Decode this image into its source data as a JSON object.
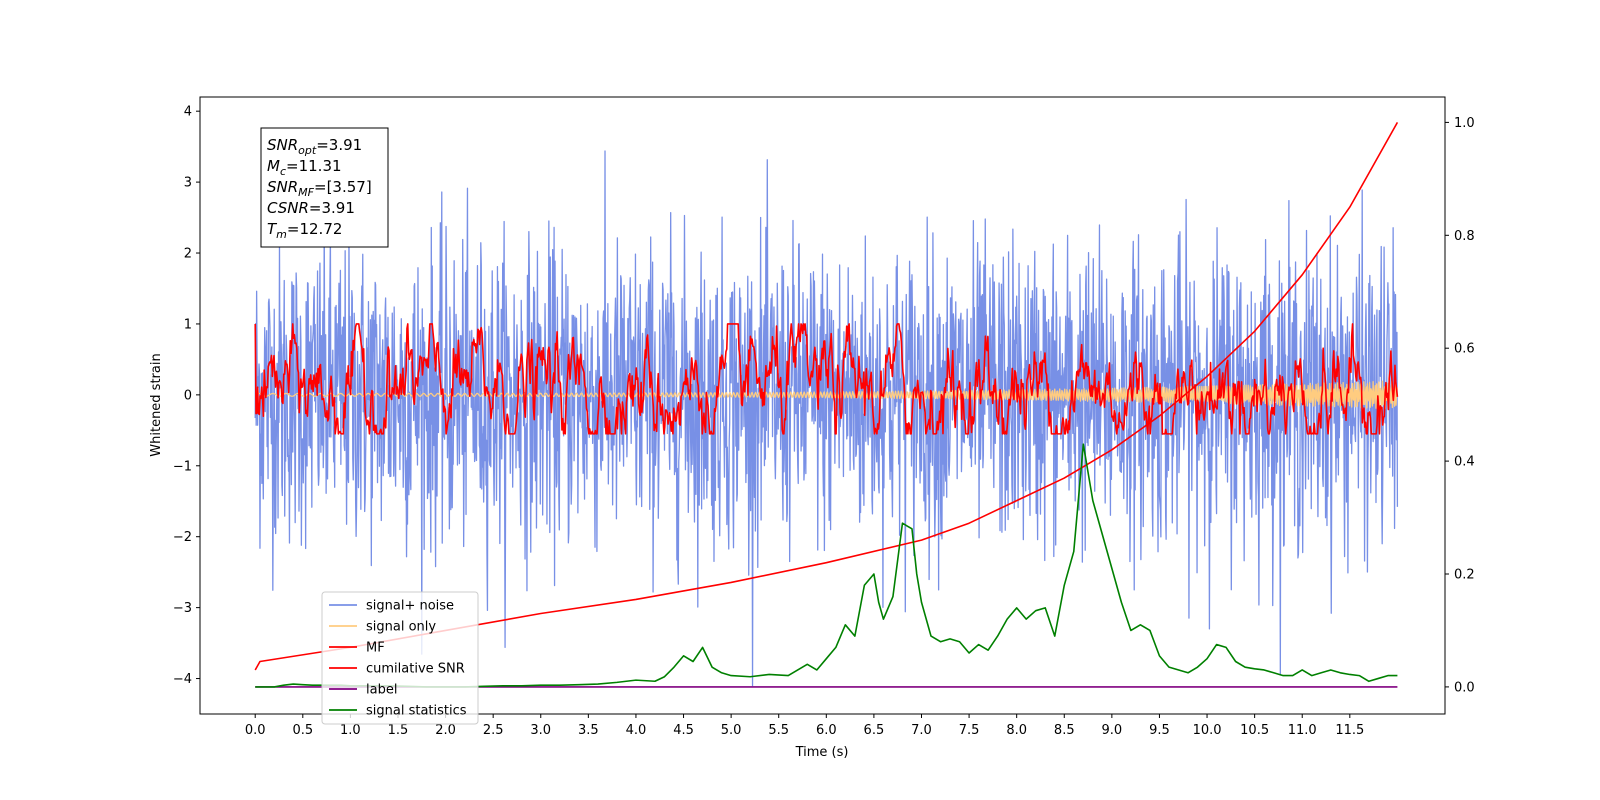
{
  "chart_data": {
    "type": "line",
    "xlabel": "Time (s)",
    "ylabel": "Whitened strain",
    "x_ticks": [
      "0.0",
      "0.5",
      "1.0",
      "1.5",
      "2.0",
      "2.5",
      "3.0",
      "3.5",
      "4.0",
      "4.5",
      "5.0",
      "5.5",
      "6.0",
      "6.5",
      "7.0",
      "7.5",
      "8.0",
      "8.5",
      "9.0",
      "9.5",
      "10.0",
      "10.5",
      "11.0",
      "11.5"
    ],
    "xlim": [
      -0.58,
      12.5
    ],
    "ylim_left": [
      -4.5,
      4.2
    ],
    "ylim_right": [
      -0.048,
      1.045
    ],
    "y_ticks_left": [
      "4",
      "3",
      "2",
      "1",
      "0",
      "−1",
      "−2",
      "−3",
      "−4"
    ],
    "y_ticks_right": [
      "1.0",
      "0.8",
      "0.6",
      "0.4",
      "0.2",
      "0.0"
    ],
    "annotation": {
      "lines": [
        {
          "sym": "SNR",
          "sub": "opt",
          "val": "=3.91"
        },
        {
          "sym": "M",
          "sub": "c",
          "val": "=11.31"
        },
        {
          "sym": "SNR",
          "sub": "MF",
          "val": "=[3.57]"
        },
        {
          "sym": "CSNR",
          "sub": "",
          "val": "=3.91"
        },
        {
          "sym": "T",
          "sub": "m",
          "val": "=12.72"
        }
      ]
    },
    "legend": {
      "placement": "lower-left",
      "entries": [
        {
          "label": "signal+ noise",
          "color": "#7890e6"
        },
        {
          "label": "signal only",
          "color": "#ffcc80"
        },
        {
          "label": "MF",
          "color": "#ff0000"
        },
        {
          "label": "cumilative SNR",
          "color": "#ff0000"
        },
        {
          "label": "label",
          "color": "#800080"
        },
        {
          "label": "signal statistics",
          "color": "#008000"
        }
      ]
    },
    "series": [
      {
        "name": "signal+ noise",
        "axis": "left",
        "color": "#7890e6",
        "x_range": [
          0,
          12.0
        ],
        "mean": 0.0,
        "std": 1.0,
        "min": -4.1,
        "max": 3.8
      },
      {
        "name": "signal only",
        "axis": "left",
        "color": "#ffcc80",
        "x_range": [
          0,
          12.0
        ],
        "amplitude_start": 0.02,
        "amplitude_end": 0.2
      },
      {
        "name": "MF",
        "axis": "left",
        "color": "#ff0000",
        "x_range": [
          0,
          12.0
        ],
        "approx_range": [
          -0.5,
          1.0
        ]
      },
      {
        "name": "cumilative SNR",
        "axis": "right",
        "color": "#ff0000",
        "x": [
          0,
          0.05,
          1,
          2,
          3,
          4,
          5,
          6,
          7,
          7.5,
          8,
          8.5,
          9,
          9.5,
          10,
          10.5,
          11,
          11.5,
          12.0
        ],
        "y": [
          0.03,
          0.045,
          0.07,
          0.1,
          0.13,
          0.155,
          0.185,
          0.22,
          0.26,
          0.29,
          0.33,
          0.37,
          0.42,
          0.48,
          0.55,
          0.63,
          0.73,
          0.85,
          1.0
        ]
      },
      {
        "name": "label",
        "axis": "right",
        "color": "#800080",
        "x": [
          0,
          12.0
        ],
        "y": [
          0.0,
          0.0
        ]
      },
      {
        "name": "signal statistics",
        "axis": "right",
        "color": "#008000",
        "x": [
          0,
          0.1,
          0.2,
          0.3,
          0.4,
          0.5,
          0.6,
          0.7,
          0.8,
          0.9,
          1.0,
          1.2,
          1.4,
          1.6,
          1.8,
          2.0,
          2.2,
          2.4,
          2.6,
          2.8,
          3.0,
          3.2,
          3.4,
          3.6,
          3.8,
          4.0,
          4.2,
          4.3,
          4.4,
          4.5,
          4.6,
          4.7,
          4.8,
          4.9,
          5.0,
          5.2,
          5.4,
          5.6,
          5.8,
          5.9,
          6.0,
          6.1,
          6.2,
          6.3,
          6.4,
          6.5,
          6.55,
          6.6,
          6.7,
          6.8,
          6.85,
          6.9,
          6.95,
          7.0,
          7.1,
          7.2,
          7.3,
          7.4,
          7.5,
          7.6,
          7.7,
          7.8,
          7.9,
          8.0,
          8.1,
          8.2,
          8.3,
          8.4,
          8.5,
          8.6,
          8.7,
          8.8,
          8.9,
          9.0,
          9.1,
          9.2,
          9.3,
          9.4,
          9.5,
          9.6,
          9.8,
          9.9,
          10.0,
          10.1,
          10.2,
          10.3,
          10.4,
          10.5,
          10.6,
          10.7,
          10.8,
          10.9,
          11.0,
          11.1,
          11.2,
          11.3,
          11.4,
          11.5,
          11.6,
          11.7,
          11.8,
          11.9,
          12.0
        ],
        "y": [
          0.0,
          0.0,
          0.0,
          0.003,
          0.005,
          0.004,
          0.003,
          0.003,
          0.003,
          0.003,
          0.002,
          0.002,
          0.002,
          0.001,
          0.0,
          0.0,
          0.0,
          0.001,
          0.002,
          0.002,
          0.003,
          0.003,
          0.004,
          0.005,
          0.008,
          0.012,
          0.01,
          0.018,
          0.035,
          0.055,
          0.045,
          0.07,
          0.035,
          0.025,
          0.02,
          0.018,
          0.022,
          0.02,
          0.04,
          0.03,
          0.05,
          0.07,
          0.11,
          0.09,
          0.18,
          0.2,
          0.15,
          0.12,
          0.16,
          0.29,
          0.285,
          0.28,
          0.2,
          0.15,
          0.09,
          0.08,
          0.085,
          0.08,
          0.06,
          0.075,
          0.065,
          0.09,
          0.12,
          0.14,
          0.12,
          0.135,
          0.14,
          0.09,
          0.18,
          0.24,
          0.43,
          0.33,
          0.27,
          0.21,
          0.15,
          0.1,
          0.11,
          0.1,
          0.055,
          0.035,
          0.025,
          0.035,
          0.05,
          0.075,
          0.07,
          0.045,
          0.035,
          0.032,
          0.03,
          0.025,
          0.02,
          0.02,
          0.03,
          0.02,
          0.025,
          0.03,
          0.025,
          0.022,
          0.02,
          0.01,
          0.015,
          0.02,
          0.02
        ]
      }
    ]
  }
}
